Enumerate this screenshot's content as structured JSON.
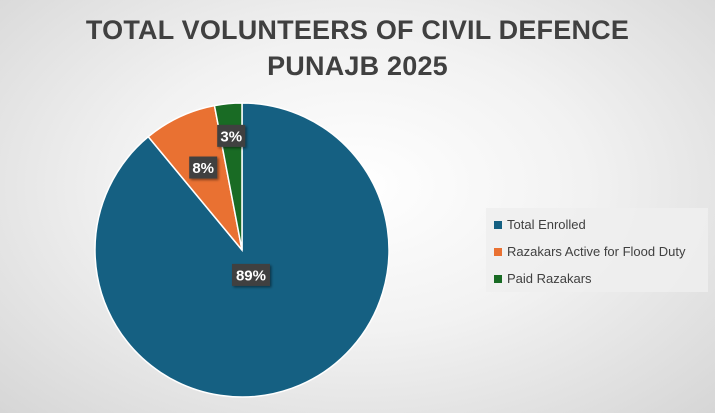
{
  "chart_data": {
    "type": "pie",
    "title": "TOTAL VOLUNTEERS OF CIVIL DEFENCE PUNAJB 2025",
    "title_lines": [
      "TOTAL VOLUNTEERS OF CIVIL DEFENCE",
      "PUNAJB 2025"
    ],
    "categories": [
      "Total Enrolled",
      "Razakars Active for Flood Duty",
      "Paid Razakars"
    ],
    "values": [
      89,
      8,
      3
    ],
    "data_labels": [
      "89%",
      "8%",
      "3%"
    ],
    "colors": [
      "#156082",
      "#E97132",
      "#196B24"
    ],
    "legend_position": "right"
  }
}
